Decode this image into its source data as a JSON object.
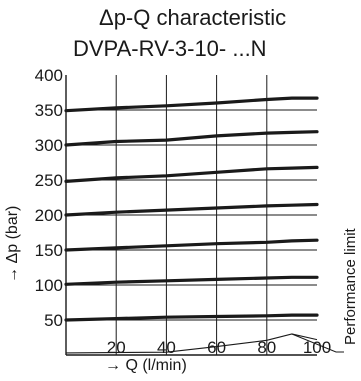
{
  "title": {
    "line1": "Δp-Q characteristic",
    "line2": "DVPA-RV-3-10- ...N"
  },
  "chart_data": {
    "type": "line",
    "title": "Δp-Q characteristic DVPA-RV-3-10- ...N",
    "xlabel": "→ Q (l/min)",
    "ylabel": "→ Δp (bar)",
    "xlim": [
      0,
      100
    ],
    "ylim": [
      0,
      400
    ],
    "x_ticks": [
      20,
      40,
      60,
      80,
      100
    ],
    "y_ticks": [
      50,
      100,
      150,
      200,
      250,
      300,
      350,
      400
    ],
    "grid": true,
    "series": [
      {
        "x": [
          0,
          20,
          40,
          60,
          80,
          90,
          100
        ],
        "values": [
          50,
          52,
          54,
          55,
          56,
          57,
          57
        ]
      },
      {
        "x": [
          0,
          20,
          40,
          60,
          80,
          90,
          100
        ],
        "values": [
          101,
          104,
          106,
          108,
          110,
          111,
          111
        ]
      },
      {
        "x": [
          0,
          20,
          40,
          60,
          80,
          90,
          100
        ],
        "values": [
          150,
          153,
          156,
          159,
          161,
          163,
          164
        ]
      },
      {
        "x": [
          0,
          20,
          40,
          60,
          80,
          90,
          100
        ],
        "values": [
          200,
          204,
          207,
          210,
          213,
          214,
          215
        ]
      },
      {
        "x": [
          0,
          20,
          40,
          60,
          80,
          90,
          100
        ],
        "values": [
          248,
          253,
          256,
          261,
          266,
          267,
          268
        ]
      },
      {
        "x": [
          0,
          20,
          40,
          60,
          80,
          90,
          100
        ],
        "values": [
          300,
          305,
          307,
          313,
          317,
          318,
          319
        ]
      },
      {
        "x": [
          0,
          20,
          40,
          60,
          80,
          90,
          100
        ],
        "values": [
          349,
          353,
          356,
          360,
          365,
          367,
          367
        ]
      }
    ],
    "performance_limit": {
      "label": "Performance limit",
      "x": [
        0,
        40,
        60,
        80,
        90,
        100
      ],
      "values": [
        3,
        4,
        12,
        21,
        30,
        22
      ]
    }
  },
  "style": {
    "line_color": "#1a1a1a",
    "grid_color": "#1a1a1a",
    "background": "#ffffff"
  }
}
